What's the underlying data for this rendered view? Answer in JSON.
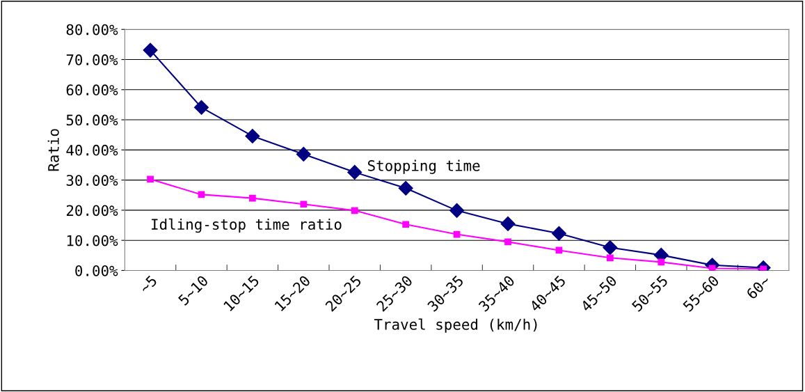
{
  "chart_data": {
    "type": "line",
    "xlabel": "Travel speed (km/h)",
    "ylabel": "Ratio",
    "categories": [
      "~5",
      "5~10",
      "10~15",
      "15~20",
      "20~25",
      "25~30",
      "30~35",
      "35~40",
      "40~45",
      "45~50",
      "50~55",
      "55~60",
      "60~"
    ],
    "series": [
      {
        "name": "Stopping time",
        "color": "#000080",
        "marker": "diamond",
        "values": [
          73.1,
          54.1,
          44.6,
          38.6,
          32.6,
          27.3,
          19.9,
          15.5,
          12.3,
          7.6,
          5.1,
          1.8,
          0.9
        ]
      },
      {
        "name": "Idling-stop time ratio",
        "color": "#ff00ff",
        "marker": "square",
        "values": [
          30.3,
          25.2,
          24.0,
          22.0,
          19.9,
          15.3,
          12.0,
          9.5,
          6.7,
          4.2,
          2.8,
          0.7,
          0.5
        ]
      }
    ],
    "ylim": [
      0,
      80
    ],
    "yticks": [
      {
        "value": 0,
        "label": "0.00%"
      },
      {
        "value": 10,
        "label": "10.00%"
      },
      {
        "value": 20,
        "label": "20.00%"
      },
      {
        "value": 30,
        "label": "30.00%"
      },
      {
        "value": 40,
        "label": "40.00%"
      },
      {
        "value": 50,
        "label": "50.00%"
      },
      {
        "value": 60,
        "label": "60.00%"
      },
      {
        "value": 70,
        "label": "70.00%"
      },
      {
        "value": 80,
        "label": "80.00%"
      }
    ],
    "grid": "y",
    "legend": false
  }
}
